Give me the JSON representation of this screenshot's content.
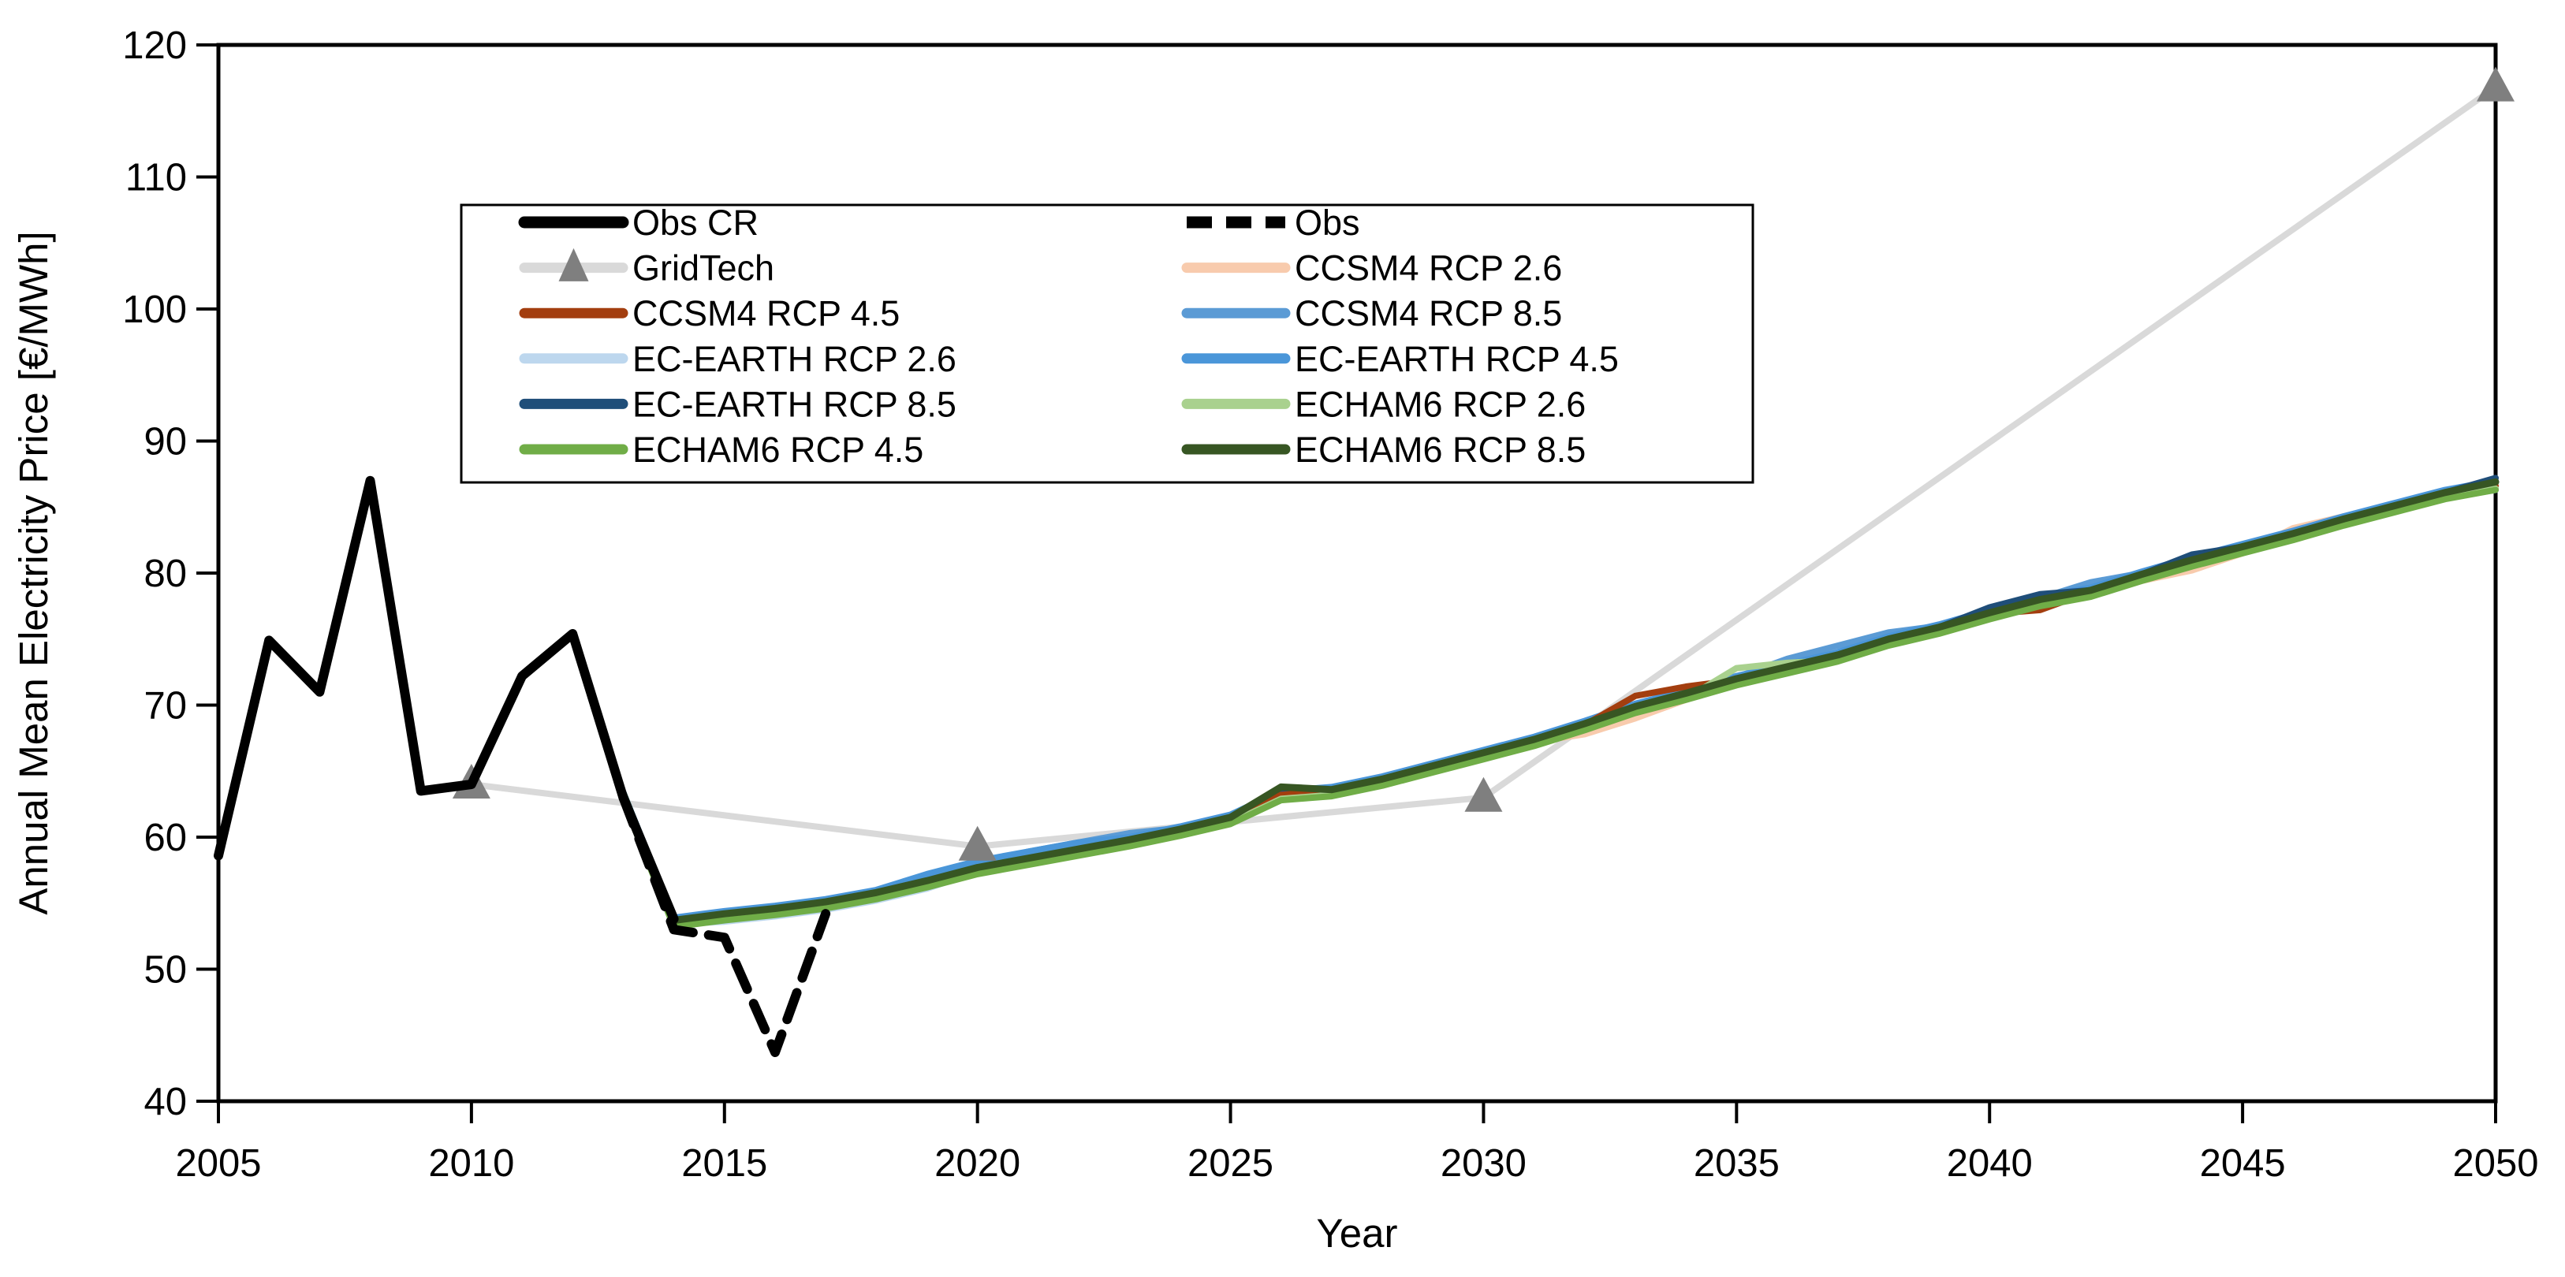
{
  "page": {
    "background": "#ffffff",
    "axis_color": "#000000",
    "text_color": "#000000"
  },
  "chart_data": {
    "type": "line",
    "title": "",
    "xlabel": "Year",
    "ylabel": "Annual Mean Electricity Price [€/MWh]",
    "xlim": [
      2005,
      2050
    ],
    "ylim": [
      40,
      120
    ],
    "x_ticks": [
      2005,
      2010,
      2015,
      2020,
      2025,
      2030,
      2035,
      2040,
      2045,
      2050
    ],
    "y_ticks": [
      40,
      50,
      60,
      70,
      80,
      90,
      100,
      110,
      120
    ],
    "grid": false,
    "legend_position": "upper-left-inside",
    "legend_rows": [
      [
        "obs_cr",
        "obs"
      ],
      [
        "gridtech",
        "ccsm4_rcp26"
      ],
      [
        "ccsm4_rcp45",
        "ccsm4_rcp85"
      ],
      [
        "ec_earth_rcp26",
        "ec_earth_rcp45"
      ],
      [
        "ec_earth_rcp85",
        "echam6_rcp26"
      ],
      [
        "echam6_rcp45",
        "echam6_rcp85"
      ]
    ],
    "model_years": [
      2013,
      2014,
      2015,
      2016,
      2017,
      2018,
      2019,
      2020,
      2021,
      2022,
      2023,
      2024,
      2025,
      2026,
      2027,
      2028,
      2029,
      2030,
      2031,
      2032,
      2033,
      2034,
      2035,
      2036,
      2037,
      2038,
      2039,
      2040,
      2041,
      2042,
      2043,
      2044,
      2045,
      2046,
      2047,
      2048,
      2049,
      2050
    ],
    "series": [
      {
        "key": "gridtech",
        "label": "GridTech",
        "color": "#d9d9d9",
        "marker": "triangle",
        "marker_color": "#7f7f7f",
        "style": "solid",
        "width": 8,
        "x": [
          2010,
          2020,
          2030,
          2050
        ],
        "y": [
          64.0,
          59.3,
          63.0,
          116.8
        ]
      },
      {
        "key": "ec_earth_rcp26",
        "label": "EC-EARTH RCP 2.6",
        "color": "#bdd7ee",
        "style": "solid",
        "width": 8,
        "y": [
          63.0,
          53.4,
          53.6,
          54.0,
          54.5,
          55.2,
          56.1,
          57.4,
          58.1,
          58.8,
          59.5,
          60.3,
          61.2,
          63.0,
          63.3,
          64.1,
          65.1,
          66.1,
          67.1,
          68.3,
          69.6,
          70.6,
          71.7,
          72.6,
          73.5,
          74.7,
          75.6,
          76.7,
          77.7,
          78.4,
          79.6,
          80.7,
          81.7,
          82.7,
          83.8,
          84.8,
          85.8,
          86.5
        ]
      },
      {
        "key": "ccsm4_rcp26",
        "label": "CCSM4 RCP 2.6",
        "color": "#f8cbad",
        "style": "solid",
        "width": 8,
        "y": [
          63.1,
          53.5,
          54.0,
          54.4,
          54.9,
          55.6,
          56.5,
          57.5,
          58.2,
          58.9,
          59.6,
          60.4,
          61.3,
          63.1,
          63.4,
          64.2,
          65.2,
          66.2,
          67.2,
          67.8,
          69.0,
          70.4,
          71.8,
          72.7,
          73.6,
          74.8,
          75.7,
          76.8,
          77.8,
          78.5,
          79.4,
          80.2,
          81.5,
          83.4,
          84.3,
          84.9,
          85.9,
          86.9
        ]
      },
      {
        "key": "ccsm4_rcp85",
        "label": "CCSM4 RCP 8.5",
        "color": "#5b9bd5",
        "style": "solid",
        "width": 8,
        "y": [
          63.3,
          53.8,
          54.3,
          54.7,
          55.2,
          55.9,
          56.8,
          57.8,
          58.9,
          59.6,
          60.3,
          60.7,
          61.6,
          63.4,
          63.7,
          64.5,
          65.5,
          66.5,
          67.5,
          68.7,
          70.0,
          71.0,
          72.1,
          73.5,
          74.5,
          75.5,
          76.0,
          77.1,
          78.1,
          79.3,
          80.0,
          81.1,
          82.1,
          83.1,
          84.2,
          85.2,
          85.7,
          86.3
        ]
      },
      {
        "key": "ec_earth_rcp45",
        "label": "EC-EARTH RCP 4.5",
        "color": "#4a96d9",
        "style": "solid",
        "width": 8,
        "y": [
          63.4,
          53.9,
          54.4,
          54.8,
          55.3,
          56.0,
          57.2,
          58.2,
          58.9,
          59.6,
          60.0,
          60.8,
          61.7,
          63.5,
          63.8,
          64.6,
          65.6,
          66.6,
          67.6,
          68.8,
          70.1,
          71.1,
          72.2,
          73.1,
          74.0,
          75.2,
          76.1,
          77.2,
          78.2,
          78.9,
          80.1,
          81.2,
          82.2,
          83.2,
          84.3,
          85.3,
          86.3,
          87.0
        ]
      },
      {
        "key": "ec_earth_rcp85",
        "label": "EC-EARTH RCP 8.5",
        "color": "#1f4e79",
        "style": "solid",
        "width": 8,
        "y": [
          63.3,
          53.7,
          54.2,
          54.6,
          55.1,
          55.8,
          56.7,
          57.7,
          58.4,
          59.1,
          59.8,
          60.6,
          61.5,
          63.3,
          63.6,
          64.4,
          65.4,
          66.4,
          67.4,
          68.6,
          69.9,
          70.9,
          72.0,
          72.9,
          73.8,
          75.0,
          75.9,
          77.4,
          78.4,
          78.7,
          79.9,
          81.4,
          82.0,
          83.0,
          84.1,
          85.1,
          86.1,
          87.2
        ]
      },
      {
        "key": "ccsm4_rcp45",
        "label": "CCSM4 RCP 4.5",
        "color": "#a33e0f",
        "style": "solid",
        "width": 8,
        "y": [
          63.2,
          53.6,
          54.1,
          54.5,
          55.0,
          55.7,
          56.6,
          57.6,
          58.3,
          59.0,
          59.7,
          60.5,
          61.4,
          63.2,
          63.5,
          64.3,
          65.3,
          66.3,
          67.3,
          68.5,
          70.7,
          71.4,
          71.9,
          72.8,
          73.7,
          74.9,
          75.8,
          76.9,
          77.2,
          78.6,
          79.8,
          80.9,
          81.9,
          82.9,
          84.0,
          85.0,
          86.0,
          86.6
        ]
      },
      {
        "key": "echam6_rcp26",
        "label": "ECHAM6 RCP 2.6",
        "color": "#a9d18e",
        "style": "solid",
        "width": 8,
        "y": [
          62.9,
          53.3,
          53.8,
          54.2,
          54.7,
          55.4,
          56.3,
          57.3,
          58.0,
          58.7,
          59.4,
          60.2,
          61.1,
          62.9,
          63.2,
          64.0,
          65.0,
          66.0,
          67.0,
          68.2,
          69.5,
          70.5,
          72.8,
          73.2,
          73.4,
          74.6,
          75.5,
          76.6,
          77.6,
          78.3,
          79.5,
          80.6,
          81.6,
          82.6,
          83.7,
          84.7,
          85.7,
          86.4
        ]
      },
      {
        "key": "echam6_rcp45",
        "label": "ECHAM6 RCP 4.5",
        "color": "#70ad47",
        "style": "solid",
        "width": 8,
        "y": [
          62.8,
          53.2,
          53.7,
          54.1,
          54.6,
          55.3,
          56.2,
          57.2,
          57.9,
          58.6,
          59.3,
          60.1,
          61.0,
          62.8,
          63.1,
          63.9,
          64.9,
          65.9,
          66.9,
          68.1,
          69.4,
          70.4,
          71.5,
          72.4,
          73.3,
          74.5,
          75.4,
          76.5,
          77.5,
          78.2,
          79.4,
          80.5,
          81.5,
          82.5,
          83.6,
          84.6,
          85.6,
          86.3
        ]
      },
      {
        "key": "echam6_rcp85",
        "label": "ECHAM6 RCP 8.5",
        "color": "#375623",
        "style": "solid",
        "width": 9,
        "y": [
          63.3,
          53.7,
          54.2,
          54.6,
          55.1,
          55.8,
          56.7,
          57.7,
          58.4,
          59.1,
          59.8,
          60.6,
          61.5,
          63.8,
          63.6,
          64.4,
          65.4,
          66.4,
          67.4,
          68.6,
          69.9,
          70.9,
          72.0,
          72.9,
          73.8,
          75.0,
          75.9,
          77.0,
          78.0,
          78.7,
          79.9,
          81.0,
          82.0,
          83.0,
          84.1,
          85.1,
          86.1,
          86.9
        ]
      },
      {
        "key": "obs_cr",
        "label": "Obs CR",
        "color": "#000000",
        "style": "solid",
        "width": 12,
        "x": [
          2005,
          2006,
          2007,
          2008,
          2009,
          2010,
          2011,
          2012,
          2013,
          2014
        ],
        "y": [
          58.6,
          74.9,
          71.0,
          87.0,
          63.5,
          64.0,
          72.2,
          75.4,
          63.0,
          53.8
        ]
      },
      {
        "key": "obs",
        "label": "Obs",
        "color": "#000000",
        "style": "dashed",
        "width": 12,
        "x": [
          2013,
          2014,
          2015,
          2016,
          2017
        ],
        "y": [
          63.0,
          53.0,
          52.4,
          43.7,
          54.2
        ]
      }
    ]
  }
}
